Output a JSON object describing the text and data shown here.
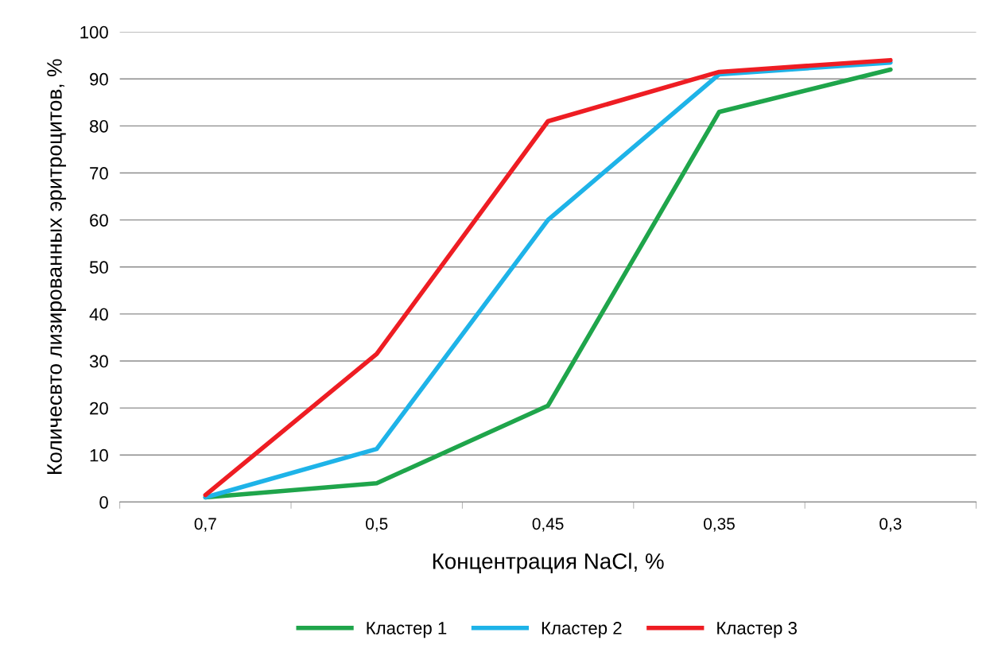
{
  "chart_data": {
    "type": "line",
    "xlabel": "Концентрация NaCl, %",
    "ylabel": "Количесвто лизированных эритроцитов, %",
    "categories": [
      "0,7",
      "0,5",
      "0,45",
      "0,35",
      "0,3"
    ],
    "series": [
      {
        "name": "Кластер 1",
        "color": "#1fa54b",
        "values": [
          1,
          4,
          20.5,
          83,
          92
        ]
      },
      {
        "name": "Кластер 2",
        "color": "#1eb3e8",
        "values": [
          1,
          11.3,
          60,
          91,
          93.5
        ]
      },
      {
        "name": "Кластер 3",
        "color": "#ee1d23",
        "values": [
          1.5,
          31.5,
          81,
          91.5,
          94
        ]
      }
    ],
    "ylim": [
      0,
      100
    ],
    "yticks": [
      0,
      10,
      20,
      30,
      40,
      50,
      60,
      70,
      80,
      90,
      100
    ],
    "grid": "y",
    "legend": "bottom",
    "marker": "none",
    "line_style": "solid"
  }
}
